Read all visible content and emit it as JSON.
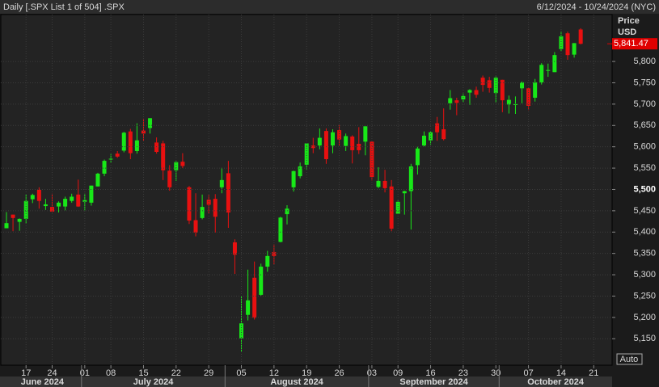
{
  "chart_data": {
    "type": "candlestick",
    "title": "Daily [.SPX List 1 of 504] .SPX",
    "date_range": "6/12/2024 - 10/24/2024 (NYC)",
    "price_label": "Price",
    "currency": "USD",
    "auto_label": "Auto",
    "x": [
      "2024-06-12",
      "2024-06-13",
      "2024-06-14",
      "2024-06-17",
      "2024-06-18",
      "2024-06-20",
      "2024-06-21",
      "2024-06-24",
      "2024-06-25",
      "2024-06-26",
      "2024-06-27",
      "2024-06-28",
      "2024-07-01",
      "2024-07-02",
      "2024-07-03",
      "2024-07-05",
      "2024-07-08",
      "2024-07-09",
      "2024-07-10",
      "2024-07-11",
      "2024-07-12",
      "2024-07-15",
      "2024-07-16",
      "2024-07-17",
      "2024-07-18",
      "2024-07-19",
      "2024-07-22",
      "2024-07-23",
      "2024-07-24",
      "2024-07-25",
      "2024-07-26",
      "2024-07-29",
      "2024-07-30",
      "2024-07-31",
      "2024-08-01",
      "2024-08-02",
      "2024-08-05",
      "2024-08-06",
      "2024-08-07",
      "2024-08-08",
      "2024-08-09",
      "2024-08-12",
      "2024-08-13",
      "2024-08-14",
      "2024-08-15",
      "2024-08-16",
      "2024-08-19",
      "2024-08-20",
      "2024-08-21",
      "2024-08-22",
      "2024-08-23",
      "2024-08-26",
      "2024-08-27",
      "2024-08-28",
      "2024-08-29",
      "2024-08-30",
      "2024-09-03",
      "2024-09-04",
      "2024-09-05",
      "2024-09-06",
      "2024-09-09",
      "2024-09-10",
      "2024-09-11",
      "2024-09-12",
      "2024-09-13",
      "2024-09-16",
      "2024-09-17",
      "2024-09-18",
      "2024-09-19",
      "2024-09-20",
      "2024-09-23",
      "2024-09-24",
      "2024-09-25",
      "2024-09-26",
      "2024-09-27",
      "2024-09-30",
      "2024-10-01",
      "2024-10-02",
      "2024-10-03",
      "2024-10-04",
      "2024-10-07",
      "2024-10-08",
      "2024-10-09",
      "2024-10-10",
      "2024-10-11",
      "2024-10-14",
      "2024-10-15",
      "2024-10-16",
      "2024-10-17",
      "2024-10-18",
      "2024-10-21",
      "2024-10-22",
      "2024-10-23",
      "2024-10-24"
    ],
    "open": [
      5409,
      5441,
      5424,
      5431,
      5477,
      5499,
      5461,
      5459,
      5460,
      5460,
      5473,
      5488,
      5471,
      5469,
      5507,
      5537,
      5572,
      5584,
      5591,
      5636,
      5590,
      5638,
      5644,
      5610,
      5608,
      5544,
      5545,
      5565,
      5505,
      5428,
      5433,
      5476,
      5478,
      5505,
      5538,
      5376,
      5151,
      5206,
      5293,
      5253,
      5319,
      5353,
      5377,
      5442,
      5505,
      5531,
      5558,
      5603,
      5603,
      5637,
      5603,
      5639,
      5602,
      5624,
      5607,
      5612,
      5612,
      5506,
      5520,
      5507,
      5443,
      5491,
      5496,
      5557,
      5603,
      5615,
      5655,
      5641,
      5702,
      5709,
      5711,
      5727,
      5733,
      5762,
      5756,
      5726,
      5757,
      5699,
      5698,
      5737,
      5737,
      5715,
      5751,
      5778,
      5775,
      5829,
      5866,
      5816,
      5875,
      null,
      null,
      null,
      null,
      null
    ],
    "high": [
      5447,
      5441,
      5432,
      5488,
      5490,
      5505,
      5478,
      5490,
      5472,
      5483,
      5490,
      5523,
      5490,
      5509,
      5539,
      5570,
      5583,
      5590,
      5635,
      5642,
      5655,
      5666,
      5667,
      5622,
      5614,
      5557,
      5566,
      5585,
      5508,
      5491,
      5488,
      5487,
      5489,
      5551,
      5567,
      5383,
      5250,
      5312,
      5331,
      5326,
      5356,
      5371,
      5436,
      5463,
      5544,
      5563,
      5608,
      5621,
      5643,
      5643,
      5641,
      5651,
      5631,
      5627,
      5646,
      5648,
      5612,
      5552,
      5546,
      5522,
      5474,
      5497,
      5560,
      5600,
      5636,
      5637,
      5670,
      5690,
      5733,
      5715,
      5725,
      5735,
      5741,
      5767,
      5764,
      5765,
      5757,
      5720,
      5718,
      5753,
      5739,
      5759,
      5796,
      5795,
      5822,
      5871,
      5870,
      5843,
      5878,
      null,
      null,
      null,
      null,
      null
    ],
    "low": [
      5409,
      5402,
      5403,
      5420,
      5468,
      5455,
      5452,
      5447,
      5446,
      5451,
      5469,
      5459,
      5451,
      5462,
      5507,
      5531,
      5562,
      5574,
      5587,
      5571,
      5584,
      5614,
      5631,
      5584,
      5522,
      5497,
      5520,
      5550,
      5419,
      5390,
      5430,
      5444,
      5399,
      5491,
      5410,
      5302,
      5120,
      5193,
      5195,
      5251,
      5307,
      5324,
      5376,
      5418,
      5495,
      5526,
      5547,
      5585,
      5594,
      5560,
      5585,
      5602,
      5590,
      5561,
      5583,
      5580,
      5521,
      5503,
      5493,
      5402,
      5442,
      5441,
      5406,
      5535,
      5601,
      5605,
      5614,
      5615,
      5687,
      5674,
      5704,
      5698,
      5715,
      5729,
      5727,
      5703,
      5681,
      5678,
      5677,
      5702,
      5686,
      5706,
      5746,
      5764,
      5775,
      5824,
      5804,
      5809,
      5840,
      null,
      null,
      null,
      null,
      null
    ],
    "close": [
      5421,
      5433,
      5431,
      5473,
      5487,
      5473,
      5465,
      5448,
      5469,
      5478,
      5483,
      5460,
      5475,
      5509,
      5537,
      5567,
      5572,
      5577,
      5633,
      5585,
      5615,
      5631,
      5667,
      5588,
      5545,
      5505,
      5564,
      5555,
      5427,
      5399,
      5459,
      5464,
      5436,
      5522,
      5446,
      5347,
      5186,
      5240,
      5199,
      5319,
      5344,
      5344,
      5434,
      5455,
      5543,
      5554,
      5608,
      5597,
      5621,
      5571,
      5634,
      5617,
      5625,
      5592,
      5592,
      5648,
      5529,
      5520,
      5503,
      5408,
      5471,
      5496,
      5554,
      5596,
      5626,
      5634,
      5634,
      5618,
      5714,
      5703,
      5719,
      5733,
      5722,
      5745,
      5738,
      5762,
      5709,
      5710,
      5700,
      5751,
      5696,
      5751,
      5792,
      5780,
      5815,
      5859,
      5815,
      5843,
      5841.47,
      null,
      null,
      null,
      null,
      null
    ],
    "up_color": "#18e818",
    "down_color": "#e81010",
    "last_price": {
      "value": 5841.47,
      "label": "5,841.47"
    },
    "ylim": [
      5088,
      5910
    ],
    "yticks": [
      {
        "value": 5150,
        "label": "5,150"
      },
      {
        "value": 5200,
        "label": "5,200"
      },
      {
        "value": 5250,
        "label": "5,250"
      },
      {
        "value": 5300,
        "label": "5,300"
      },
      {
        "value": 5350,
        "label": "5,350"
      },
      {
        "value": 5400,
        "label": "5,400"
      },
      {
        "value": 5450,
        "label": "5,450"
      },
      {
        "value": 5500,
        "label": "5,500"
      },
      {
        "value": 5550,
        "label": "5,550"
      },
      {
        "value": 5600,
        "label": "5,600"
      },
      {
        "value": 5650,
        "label": "5,650"
      },
      {
        "value": 5700,
        "label": "5,700"
      },
      {
        "value": 5750,
        "label": "5,750"
      },
      {
        "value": 5800,
        "label": "5,800"
      }
    ],
    "xticks": [
      {
        "value": "2024-06-17",
        "label": "17"
      },
      {
        "value": "2024-06-24",
        "label": "24"
      },
      {
        "value": "2024-07-01",
        "label": "01"
      },
      {
        "value": "2024-07-08",
        "label": "08"
      },
      {
        "value": "2024-07-15",
        "label": "15"
      },
      {
        "value": "2024-07-22",
        "label": "22"
      },
      {
        "value": "2024-07-29",
        "label": "29"
      },
      {
        "value": "2024-08-05",
        "label": "05"
      },
      {
        "value": "2024-08-12",
        "label": "12"
      },
      {
        "value": "2024-08-19",
        "label": "19"
      },
      {
        "value": "2024-08-26",
        "label": "26"
      },
      {
        "value": "2024-09-03",
        "label": "03"
      },
      {
        "value": "2024-09-09",
        "label": "09"
      },
      {
        "value": "2024-09-16",
        "label": "16"
      },
      {
        "value": "2024-09-23",
        "label": "23"
      },
      {
        "value": "2024-09-30",
        "label": "30"
      },
      {
        "value": "2024-10-07",
        "label": "07"
      },
      {
        "value": "2024-10-14",
        "label": "14"
      },
      {
        "value": "2024-10-21",
        "label": "21"
      }
    ],
    "months": [
      {
        "value": "2024-06",
        "label": "June 2024"
      },
      {
        "value": "2024-07",
        "label": "July 2024"
      },
      {
        "value": "2024-08",
        "label": "August 2024"
      },
      {
        "value": "2024-09",
        "label": "September 2024"
      },
      {
        "value": "2024-10",
        "label": "October 2024"
      }
    ],
    "grid": true
  }
}
